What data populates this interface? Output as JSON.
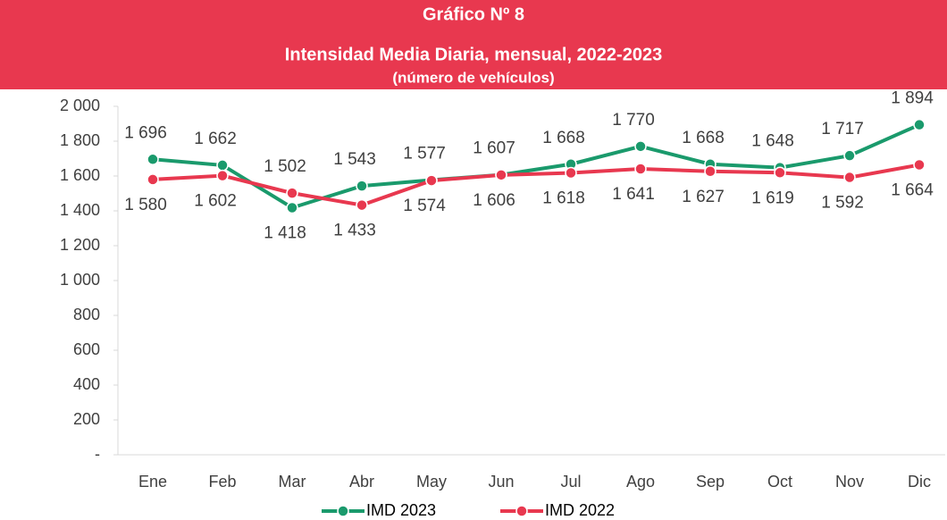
{
  "chart_data": {
    "type": "line",
    "title": "Gráfico Nº  8",
    "subtitle": "Intensidad Media Diaria, mensual, 2022-2023",
    "unit_label": "(número de vehículos)",
    "categories": [
      "Ene",
      "Feb",
      "Mar",
      "Abr",
      "May",
      "Jun",
      "Jul",
      "Ago",
      "Sep",
      "Oct",
      "Nov",
      "Dic"
    ],
    "series": [
      {
        "name": "IMD 2023",
        "color": "#1a9a6c",
        "values": [
          1696,
          1662,
          1418,
          1543,
          1577,
          1607,
          1668,
          1770,
          1668,
          1648,
          1717,
          1894
        ],
        "value_labels": [
          "1 696",
          "1 662",
          "1 418",
          "1 543",
          "1 577",
          "1 607",
          "1 668",
          "1 770",
          "1 668",
          "1 648",
          "1 717",
          "1 894"
        ]
      },
      {
        "name": "IMD 2022",
        "color": "#e8384f",
        "values": [
          1580,
          1602,
          1502,
          1433,
          1574,
          1606,
          1618,
          1641,
          1627,
          1619,
          1592,
          1664
        ],
        "value_labels": [
          "1 580",
          "1 602",
          "1 502",
          "1 433",
          "1 574",
          "1 606",
          "1 618",
          "1 641",
          "1 627",
          "1 619",
          "1 592",
          "1 664"
        ]
      }
    ],
    "ylim": [
      0,
      2000
    ],
    "yticks": [
      {
        "value": 0,
        "label": "-"
      },
      200,
      400,
      600,
      800,
      {
        "value": 1000,
        "label": "1 000"
      },
      {
        "value": 1200,
        "label": "1 200"
      },
      {
        "value": 1400,
        "label": "1 400"
      },
      {
        "value": 1600,
        "label": "1 600"
      },
      {
        "value": 1800,
        "label": "1 800"
      },
      {
        "value": 2000,
        "label": "2 000"
      }
    ],
    "grid": false,
    "legend": "bottom",
    "title_background": "#e8384f"
  }
}
